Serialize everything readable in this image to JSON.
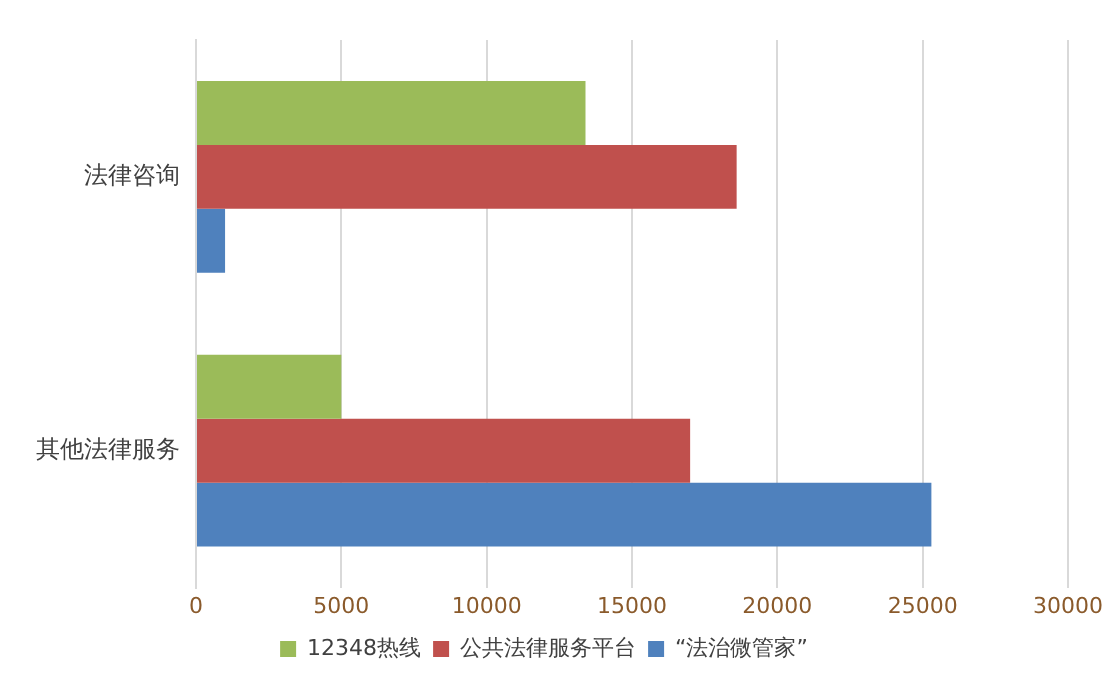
{
  "chart_data": {
    "type": "bar",
    "orientation": "horizontal",
    "categories": [
      "法律咨询",
      "其他法律服务"
    ],
    "series": [
      {
        "name": "12348热线",
        "color": "#9bbb59",
        "values": [
          13400,
          5000
        ]
      },
      {
        "name": "公共法律服务平台",
        "color": "#c0504d",
        "values": [
          18600,
          17000
        ]
      },
      {
        "name": "“法治微管家”",
        "color": "#4f81bd",
        "values": [
          1000,
          25300
        ]
      }
    ],
    "xlim": [
      0,
      30000
    ],
    "xticks": [
      0,
      5000,
      10000,
      15000,
      20000,
      25000,
      30000
    ],
    "grid": "x",
    "legend": "bottom"
  }
}
